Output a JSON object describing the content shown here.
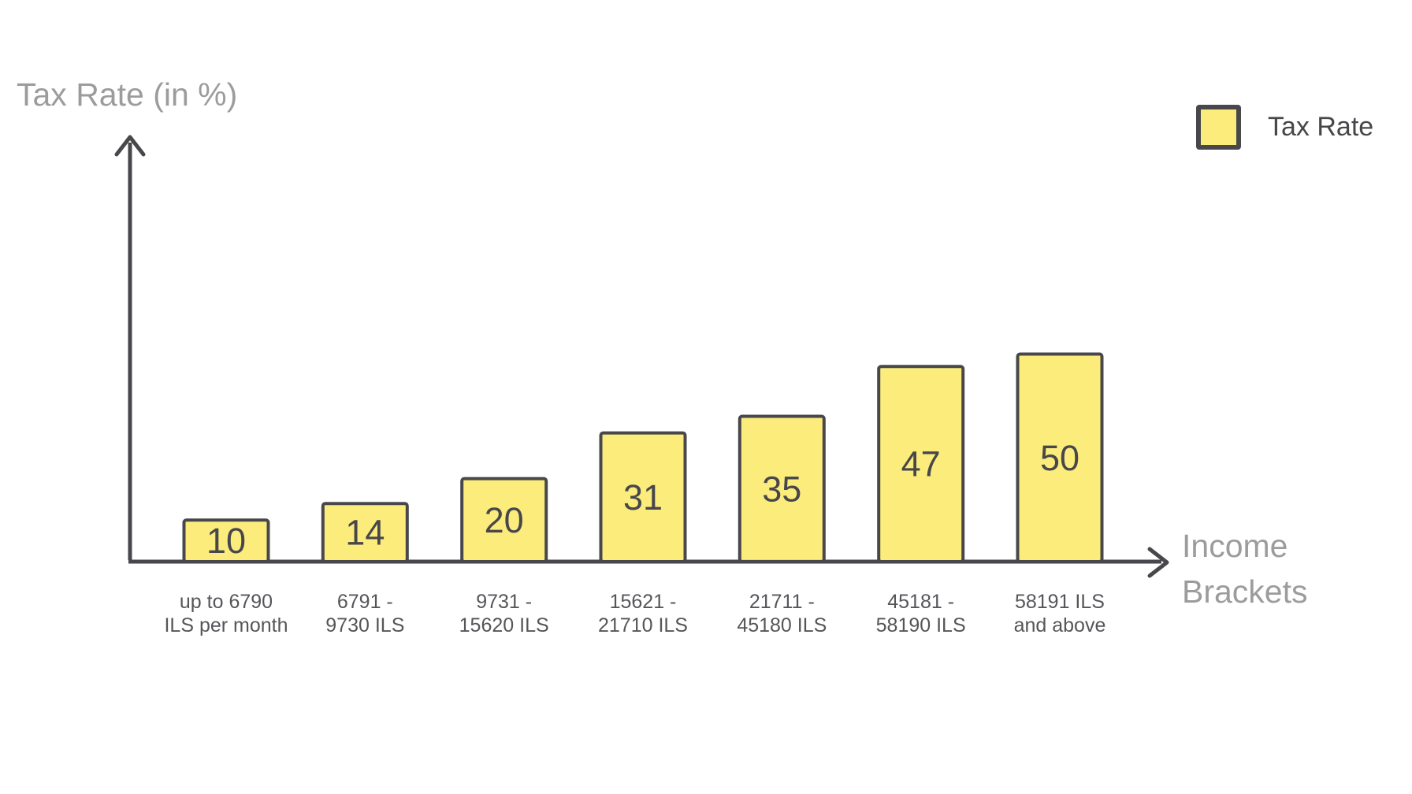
{
  "colors": {
    "background": "#FFFFFF",
    "bar_fill": "#FBEC7C",
    "bar_stroke": "#48484C",
    "value_text": "#47474B",
    "tick_text": "#56565A",
    "axis_title_text": "#9C9C9E",
    "axis_stroke": "#48484C"
  },
  "legend": {
    "label": "Tax Rate",
    "swatch": "yellow-square"
  },
  "axes": {
    "y_title": "Tax Rate (in %)",
    "x_title_line1": "Income",
    "x_title_line2": "Brackets"
  },
  "chart_data": {
    "type": "bar",
    "series_name": "Tax Rate",
    "categories": [
      [
        "up to 6790",
        "ILS per month"
      ],
      [
        "6791 -",
        "9730 ILS"
      ],
      [
        "9731 -",
        "15620 ILS"
      ],
      [
        "15621 -",
        "21710 ILS"
      ],
      [
        "21711 -",
        "45180 ILS"
      ],
      [
        "45181 -",
        "58190 ILS"
      ],
      [
        "58191 ILS",
        "and above"
      ]
    ],
    "values": [
      10,
      14,
      20,
      31,
      35,
      47,
      50
    ],
    "value_unit": "percent",
    "xlabel": "Income Brackets",
    "ylabel": "Tax Rate (in %)",
    "grid": false,
    "axis_ticks": "none",
    "data_labels": "inside-center",
    "legend_position": "top-right"
  }
}
